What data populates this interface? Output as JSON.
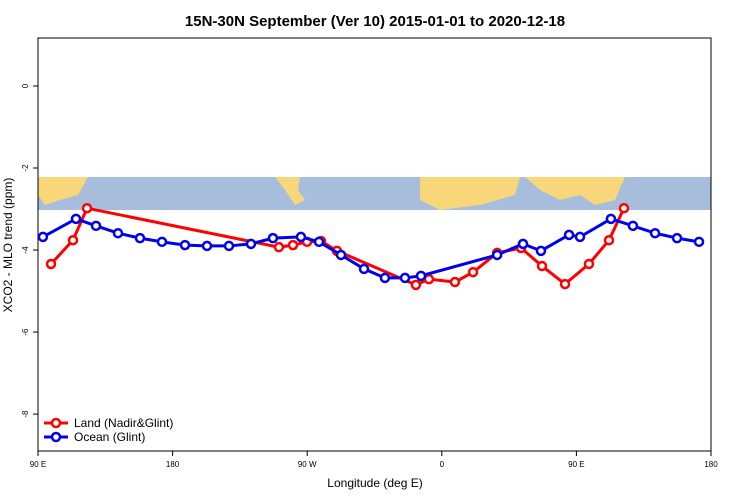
{
  "chart_data": {
    "type": "line",
    "title": "15N-30N September (Ver 10)   2015-01-01 to 2020-12-18",
    "x_label": "Longitude (deg E)",
    "y_label": "XCO2 - MLO trend (ppm)",
    "xlim": [
      90,
      540
    ],
    "ylim": [
      -8.9,
      1.17
    ],
    "xticks": [
      {
        "value": 90,
        "label": "90 E"
      },
      180,
      {
        "value": 270,
        "label": "90 W"
      },
      {
        "value": 360,
        "label": "0"
      },
      {
        "value": 450,
        "label": "90 E"
      },
      {
        "value": 540,
        "label": "180"
      }
    ],
    "yticks": [
      0,
      -2,
      -4,
      -6,
      -8
    ],
    "legend": "bottom-left",
    "series": [
      {
        "name": "Land (Nadir&Glint)",
        "color": "#ff0000",
        "x": [
          98.7,
          113.4,
          122.8,
          251.1,
          260.5,
          269.9,
          279.2,
          289.9,
          342.7,
          351.4,
          368.8,
          380.9,
          397.0,
          413.0,
          427.0,
          442.4,
          458.4,
          471.8,
          481.8
        ],
        "values": [
          -4.34,
          -3.76,
          -2.98,
          -3.93,
          -3.88,
          -3.8,
          -3.78,
          -4.02,
          -4.85,
          -4.71,
          -4.78,
          -4.54,
          -4.07,
          -3.95,
          -4.39,
          -4.83,
          -4.34,
          -3.76,
          -2.98
        ]
      },
      {
        "name": "Ocean (Glint)",
        "color": "#0000ee",
        "x": [
          93.3,
          115.4,
          128.8,
          143.5,
          158.2,
          172.9,
          188.3,
          203.0,
          217.7,
          232.4,
          247.1,
          265.8,
          277.9,
          292.6,
          308.0,
          322.0,
          335.4,
          346.1,
          397.0,
          414.3,
          426.3,
          445.1,
          452.4,
          473.1,
          487.8,
          502.6,
          517.3,
          532.0
        ],
        "values": [
          -3.68,
          -3.24,
          -3.41,
          -3.59,
          -3.71,
          -3.8,
          -3.88,
          -3.9,
          -3.9,
          -3.85,
          -3.71,
          -3.68,
          -3.8,
          -4.12,
          -4.46,
          -4.68,
          -4.68,
          -4.63,
          -4.12,
          -3.85,
          -4.02,
          -3.63,
          -3.68,
          -3.24,
          -3.41,
          -3.59,
          -3.71,
          -3.8
        ]
      }
    ]
  }
}
